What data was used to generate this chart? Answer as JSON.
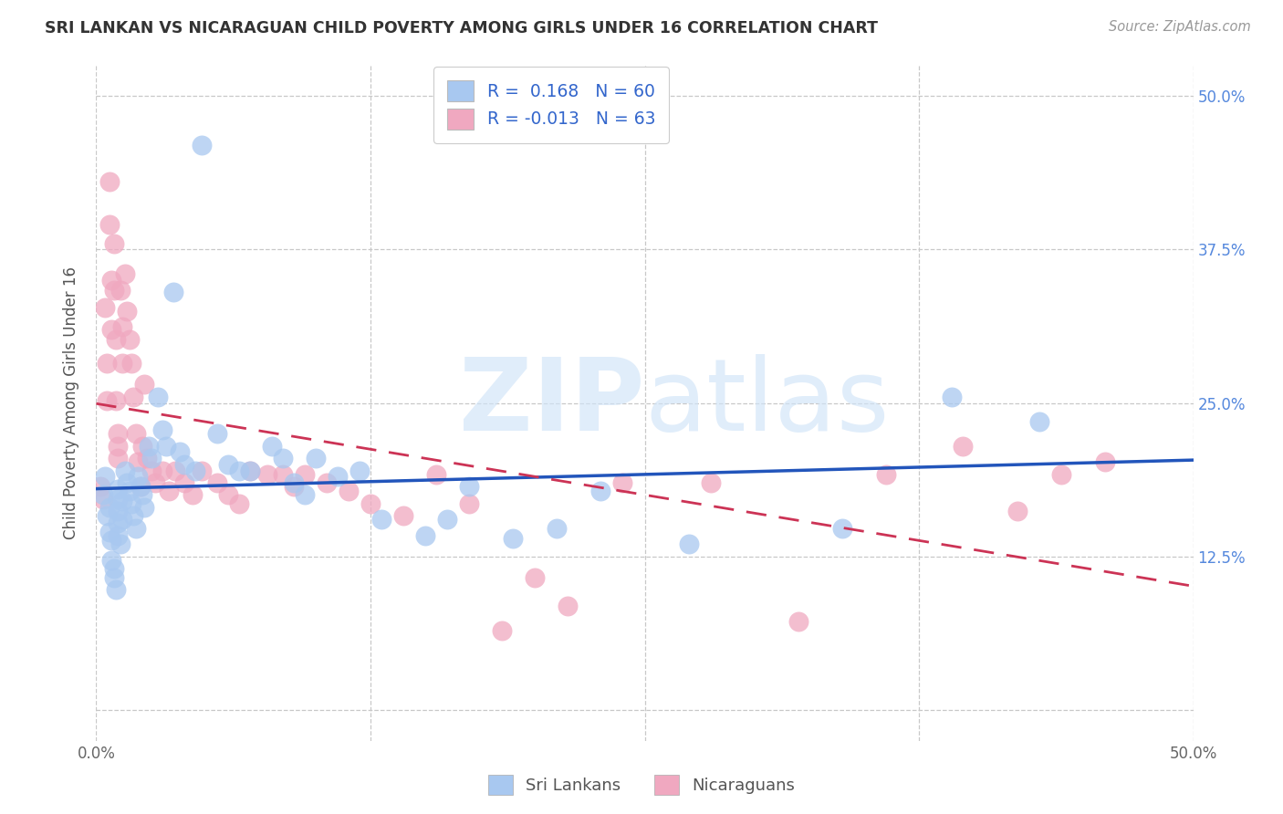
{
  "title": "SRI LANKAN VS NICARAGUAN CHILD POVERTY AMONG GIRLS UNDER 16 CORRELATION CHART",
  "source": "Source: ZipAtlas.com",
  "ylabel": "Child Poverty Among Girls Under 16",
  "xlim": [
    0.0,
    0.5
  ],
  "ylim": [
    -0.025,
    0.525
  ],
  "legend_r1": "R =  0.168   N = 60",
  "legend_r2": "R = -0.013   N = 63",
  "blue_color": "#a8c8f0",
  "pink_color": "#f0a8c0",
  "blue_line_color": "#2255bb",
  "pink_line_color": "#cc3355",
  "background_color": "#ffffff",
  "grid_color": "#c8c8c8",
  "sl_x": [
    0.003,
    0.004,
    0.005,
    0.006,
    0.006,
    0.007,
    0.007,
    0.008,
    0.008,
    0.009,
    0.01,
    0.01,
    0.01,
    0.01,
    0.01,
    0.011,
    0.012,
    0.012,
    0.013,
    0.014,
    0.015,
    0.016,
    0.017,
    0.018,
    0.019,
    0.02,
    0.021,
    0.022,
    0.024,
    0.025,
    0.028,
    0.03,
    0.032,
    0.035,
    0.038,
    0.04,
    0.045,
    0.048,
    0.055,
    0.06,
    0.065,
    0.07,
    0.08,
    0.085,
    0.09,
    0.095,
    0.1,
    0.11,
    0.12,
    0.13,
    0.15,
    0.16,
    0.17,
    0.19,
    0.21,
    0.23,
    0.27,
    0.34,
    0.39,
    0.43
  ],
  "sl_y": [
    0.175,
    0.19,
    0.158,
    0.165,
    0.145,
    0.138,
    0.122,
    0.115,
    0.108,
    0.098,
    0.18,
    0.172,
    0.162,
    0.152,
    0.142,
    0.135,
    0.17,
    0.155,
    0.195,
    0.185,
    0.178,
    0.168,
    0.158,
    0.148,
    0.19,
    0.182,
    0.175,
    0.165,
    0.215,
    0.205,
    0.255,
    0.228,
    0.215,
    0.34,
    0.21,
    0.2,
    0.195,
    0.46,
    0.225,
    0.2,
    0.195,
    0.195,
    0.215,
    0.205,
    0.185,
    0.175,
    0.205,
    0.19,
    0.195,
    0.155,
    0.142,
    0.155,
    0.182,
    0.14,
    0.148,
    0.178,
    0.135,
    0.148,
    0.255,
    0.235
  ],
  "nic_x": [
    0.002,
    0.003,
    0.004,
    0.005,
    0.005,
    0.006,
    0.006,
    0.007,
    0.007,
    0.008,
    0.008,
    0.009,
    0.009,
    0.01,
    0.01,
    0.01,
    0.011,
    0.012,
    0.012,
    0.013,
    0.014,
    0.015,
    0.016,
    0.017,
    0.018,
    0.019,
    0.02,
    0.021,
    0.022,
    0.023,
    0.025,
    0.027,
    0.03,
    0.033,
    0.036,
    0.04,
    0.044,
    0.048,
    0.055,
    0.06,
    0.065,
    0.07,
    0.078,
    0.085,
    0.09,
    0.095,
    0.105,
    0.115,
    0.125,
    0.14,
    0.155,
    0.17,
    0.185,
    0.2,
    0.215,
    0.24,
    0.28,
    0.32,
    0.36,
    0.395,
    0.42,
    0.44,
    0.46
  ],
  "nic_y": [
    0.182,
    0.172,
    0.328,
    0.282,
    0.252,
    0.43,
    0.395,
    0.35,
    0.31,
    0.38,
    0.342,
    0.302,
    0.252,
    0.225,
    0.215,
    0.205,
    0.342,
    0.312,
    0.282,
    0.355,
    0.325,
    0.302,
    0.282,
    0.255,
    0.225,
    0.202,
    0.182,
    0.215,
    0.265,
    0.205,
    0.195,
    0.185,
    0.195,
    0.178,
    0.195,
    0.185,
    0.175,
    0.195,
    0.185,
    0.175,
    0.168,
    0.195,
    0.192,
    0.192,
    0.182,
    0.192,
    0.185,
    0.178,
    0.168,
    0.158,
    0.192,
    0.168,
    0.065,
    0.108,
    0.085,
    0.185,
    0.185,
    0.072,
    0.192,
    0.215,
    0.162,
    0.192,
    0.202
  ]
}
